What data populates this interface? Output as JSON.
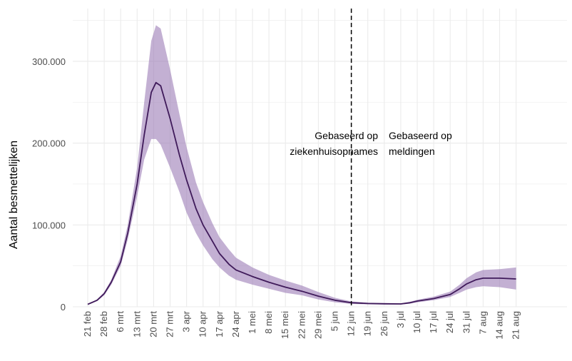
{
  "chart_data": {
    "type": "line",
    "title": "",
    "xlabel": "",
    "ylabel": "Aantal besmettelijken",
    "grid": true,
    "ylim": [
      0,
      350000
    ],
    "yticks": [
      {
        "value": 0,
        "label": "0"
      },
      {
        "value": 100000,
        "label": "100.000"
      },
      {
        "value": 200000,
        "label": "200.000"
      },
      {
        "value": 300000,
        "label": "300.000"
      }
    ],
    "x_start": "2020-02-17",
    "x_end": "2020-08-21",
    "xticks": [
      {
        "date": "2020-02-21",
        "label": "21 feb"
      },
      {
        "date": "2020-02-28",
        "label": "28 feb"
      },
      {
        "date": "2020-03-06",
        "label": "6 mrt"
      },
      {
        "date": "2020-03-13",
        "label": "13 mrt"
      },
      {
        "date": "2020-03-20",
        "label": "20 mrt"
      },
      {
        "date": "2020-03-27",
        "label": "27 mrt"
      },
      {
        "date": "2020-04-03",
        "label": "3 apr"
      },
      {
        "date": "2020-04-10",
        "label": "10 apr"
      },
      {
        "date": "2020-04-17",
        "label": "17 apr"
      },
      {
        "date": "2020-04-24",
        "label": "24 apr"
      },
      {
        "date": "2020-05-01",
        "label": "1 mei"
      },
      {
        "date": "2020-05-08",
        "label": "8 mei"
      },
      {
        "date": "2020-05-15",
        "label": "15 mei"
      },
      {
        "date": "2020-05-22",
        "label": "22 mei"
      },
      {
        "date": "2020-05-29",
        "label": "29 mei"
      },
      {
        "date": "2020-06-05",
        "label": "5 jun"
      },
      {
        "date": "2020-06-12",
        "label": "12 jun"
      },
      {
        "date": "2020-06-19",
        "label": "19 jun"
      },
      {
        "date": "2020-06-26",
        "label": "26 jun"
      },
      {
        "date": "2020-07-03",
        "label": "3 jul"
      },
      {
        "date": "2020-07-10",
        "label": "10 jul"
      },
      {
        "date": "2020-07-17",
        "label": "17 jul"
      },
      {
        "date": "2020-07-24",
        "label": "24 jul"
      },
      {
        "date": "2020-07-31",
        "label": "31 jul"
      },
      {
        "date": "2020-08-07",
        "label": "7 aug"
      },
      {
        "date": "2020-08-14",
        "label": "14 aug"
      },
      {
        "date": "2020-08-21",
        "label": "21 aug"
      }
    ],
    "series": [
      {
        "type": "line",
        "color": "#3f1a5a",
        "band_color": "#9b7bb5",
        "points": [
          {
            "date": "2020-02-21",
            "y": 3000,
            "lo": 2500,
            "hi": 3500
          },
          {
            "date": "2020-02-25",
            "y": 8000,
            "lo": 7000,
            "hi": 9000
          },
          {
            "date": "2020-02-28",
            "y": 16000,
            "lo": 14000,
            "hi": 18000
          },
          {
            "date": "2020-03-02",
            "y": 30000,
            "lo": 27000,
            "hi": 33000
          },
          {
            "date": "2020-03-06",
            "y": 55000,
            "lo": 50000,
            "hi": 62000
          },
          {
            "date": "2020-03-09",
            "y": 90000,
            "lo": 82000,
            "hi": 100000
          },
          {
            "date": "2020-03-13",
            "y": 150000,
            "lo": 135000,
            "hi": 170000
          },
          {
            "date": "2020-03-16",
            "y": 210000,
            "lo": 180000,
            "hi": 250000
          },
          {
            "date": "2020-03-19",
            "y": 262000,
            "lo": 205000,
            "hi": 325000
          },
          {
            "date": "2020-03-21",
            "y": 274000,
            "lo": 205000,
            "hi": 344000
          },
          {
            "date": "2020-03-23",
            "y": 270000,
            "lo": 198000,
            "hi": 340000
          },
          {
            "date": "2020-03-27",
            "y": 230000,
            "lo": 170000,
            "hi": 290000
          },
          {
            "date": "2020-03-31",
            "y": 185000,
            "lo": 140000,
            "hi": 235000
          },
          {
            "date": "2020-04-03",
            "y": 155000,
            "lo": 115000,
            "hi": 195000
          },
          {
            "date": "2020-04-07",
            "y": 120000,
            "lo": 90000,
            "hi": 152000
          },
          {
            "date": "2020-04-10",
            "y": 100000,
            "lo": 75000,
            "hi": 128000
          },
          {
            "date": "2020-04-14",
            "y": 80000,
            "lo": 58000,
            "hi": 102000
          },
          {
            "date": "2020-04-17",
            "y": 65000,
            "lo": 48000,
            "hi": 85000
          },
          {
            "date": "2020-04-21",
            "y": 52000,
            "lo": 38000,
            "hi": 70000
          },
          {
            "date": "2020-04-24",
            "y": 45000,
            "lo": 33000,
            "hi": 60000
          },
          {
            "date": "2020-05-01",
            "y": 37000,
            "lo": 27000,
            "hi": 48000
          },
          {
            "date": "2020-05-08",
            "y": 30000,
            "lo": 22000,
            "hi": 39000
          },
          {
            "date": "2020-05-15",
            "y": 24000,
            "lo": 17000,
            "hi": 32000
          },
          {
            "date": "2020-05-22",
            "y": 19000,
            "lo": 14000,
            "hi": 26000
          },
          {
            "date": "2020-05-29",
            "y": 13000,
            "lo": 9000,
            "hi": 18000
          },
          {
            "date": "2020-06-05",
            "y": 8000,
            "lo": 5500,
            "hi": 11000
          },
          {
            "date": "2020-06-12",
            "y": 5000,
            "lo": 3500,
            "hi": 6500
          },
          {
            "date": "2020-06-19",
            "y": 4000,
            "lo": 3000,
            "hi": 5000
          },
          {
            "date": "2020-06-26",
            "y": 3700,
            "lo": 2800,
            "hi": 4600
          },
          {
            "date": "2020-07-03",
            "y": 3500,
            "lo": 2700,
            "hi": 4300
          },
          {
            "date": "2020-07-07",
            "y": 5000,
            "lo": 3800,
            "hi": 6200
          },
          {
            "date": "2020-07-10",
            "y": 7000,
            "lo": 5500,
            "hi": 8500
          },
          {
            "date": "2020-07-17",
            "y": 10000,
            "lo": 8000,
            "hi": 12500
          },
          {
            "date": "2020-07-24",
            "y": 15000,
            "lo": 12000,
            "hi": 18500
          },
          {
            "date": "2020-07-28",
            "y": 22000,
            "lo": 17000,
            "hi": 27000
          },
          {
            "date": "2020-07-31",
            "y": 28000,
            "lo": 21000,
            "hi": 35000
          },
          {
            "date": "2020-08-04",
            "y": 33000,
            "lo": 24000,
            "hi": 42000
          },
          {
            "date": "2020-08-07",
            "y": 35000,
            "lo": 25000,
            "hi": 45000
          },
          {
            "date": "2020-08-14",
            "y": 35000,
            "lo": 24000,
            "hi": 46000
          },
          {
            "date": "2020-08-21",
            "y": 34000,
            "lo": 21000,
            "hi": 48000
          }
        ]
      }
    ],
    "vline": {
      "date": "2020-06-12",
      "style": "dashed",
      "color": "#000000"
    },
    "annotations": {
      "left_line1": "Gebaseerd op",
      "left_line2": "ziekenhuisopnames",
      "right_line1": "Gebaseerd op",
      "right_line2": "meldingen"
    }
  }
}
